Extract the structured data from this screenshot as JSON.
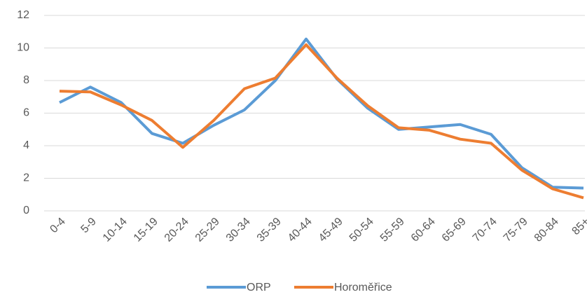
{
  "chart_data": {
    "type": "line",
    "categories": [
      "0-4",
      "5-9",
      "10-14",
      "15-19",
      "20-24",
      "25-29",
      "30-34",
      "35-39",
      "40-44",
      "45-49",
      "50-54",
      "55-59",
      "60-64",
      "65-69",
      "70-74",
      "75-79",
      "80-84",
      "85+"
    ],
    "series": [
      {
        "name": "ORP",
        "color": "#5b9bd5",
        "values": [
          6.65,
          7.6,
          6.65,
          4.75,
          4.15,
          5.25,
          6.2,
          8.0,
          10.55,
          8.1,
          6.3,
          5.0,
          5.15,
          5.3,
          4.7,
          2.65,
          1.45,
          1.4
        ]
      },
      {
        "name": "Horoměřice",
        "color": "#ed7d31",
        "values": [
          7.35,
          7.3,
          6.5,
          5.55,
          3.9,
          5.55,
          7.5,
          8.15,
          10.2,
          8.15,
          6.45,
          5.1,
          4.95,
          4.4,
          4.15,
          2.5,
          1.35,
          0.8
        ]
      }
    ],
    "ylim": [
      0,
      12
    ],
    "yticks": [
      0,
      2,
      4,
      6,
      8,
      10,
      12
    ],
    "grid": true,
    "legend": "bottom"
  }
}
